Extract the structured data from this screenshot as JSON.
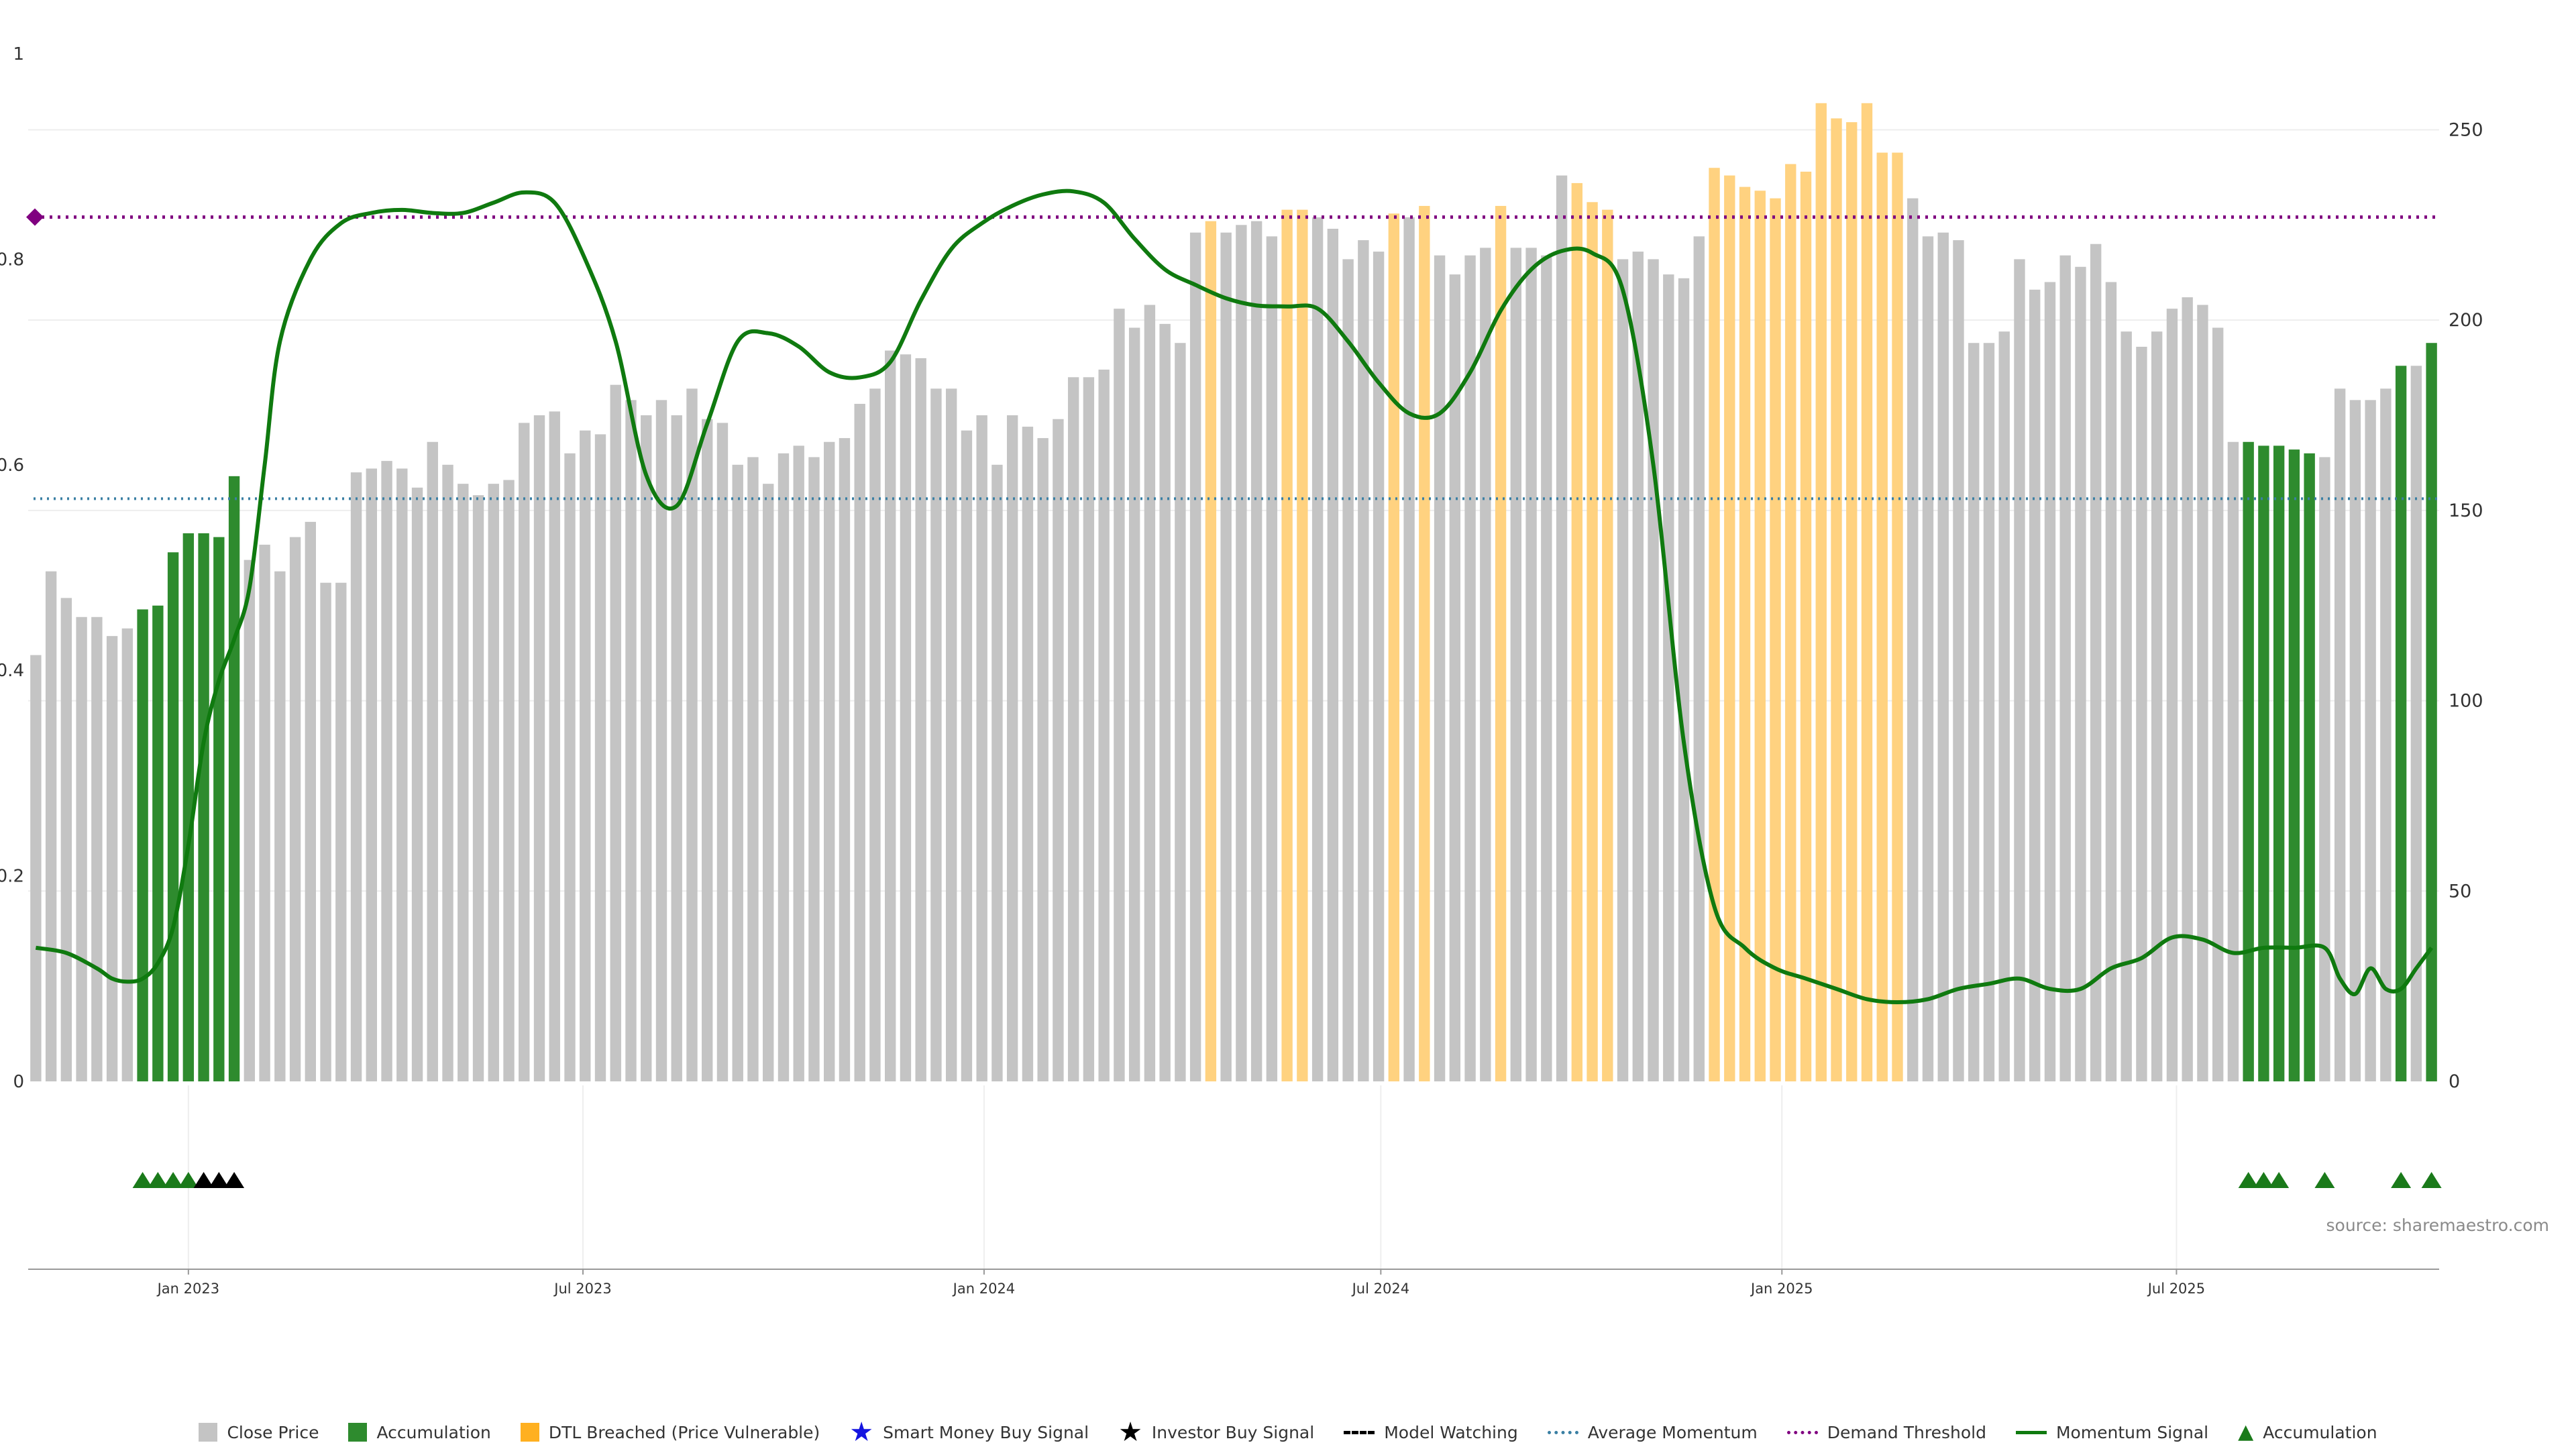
{
  "source": "source: sharemaestro.com",
  "colors": {
    "close": "#c4c4c4",
    "accumulation": "#2e8b2e",
    "dtl": "#ffd280",
    "momentum": "#0f7a0f",
    "demand": "#800080",
    "average": "#3a7fa3",
    "grid": "#eeeeee",
    "axis": "#999999"
  },
  "legend": [
    {
      "label": "Close Price",
      "kind": "box",
      "color": "#c4c4c4"
    },
    {
      "label": "Accumulation",
      "kind": "box",
      "color": "#2e8b2e"
    },
    {
      "label": "DTL Breached (Price Vulnerable)",
      "kind": "box",
      "color": "#ffb020"
    },
    {
      "label": "Smart Money Buy Signal",
      "kind": "star",
      "color": "#1515e0"
    },
    {
      "label": "Investor Buy Signal",
      "kind": "star",
      "color": "#000000"
    },
    {
      "label": "Model Watching",
      "kind": "dash",
      "color": "#000000"
    },
    {
      "label": "Average Momentum",
      "kind": "dot",
      "color": "#3a7fa3"
    },
    {
      "label": "Demand Threshold",
      "kind": "dot",
      "color": "#800080"
    },
    {
      "label": "Momentum Signal",
      "kind": "line",
      "color": "#0f7a0f"
    },
    {
      "label": "Accumulation",
      "kind": "triangle",
      "color": "#1a7a1a"
    }
  ],
  "chart_data": {
    "type": "bar",
    "x_dates": {
      "first": "2022-10-23",
      "step_days": 7,
      "count": 158
    },
    "xticks": [
      "Jan 2023",
      "Jul 2023",
      "Jan 2024",
      "Jul 2024",
      "Jan 2025",
      "Jul 2025"
    ],
    "left_axis": {
      "ticks": [
        "0",
        "0.2",
        "0.4",
        "0.6",
        "0.8",
        "1"
      ],
      "ylim": [
        0,
        1
      ]
    },
    "right_axis": {
      "ticks": [
        "0",
        "50",
        "100",
        "150",
        "200",
        "250"
      ],
      "ylim": [
        0,
        270
      ]
    },
    "series": [
      {
        "name": "Close Price",
        "axis": "right",
        "values": [
          112,
          134,
          127,
          122,
          122,
          117,
          119,
          124,
          125,
          139,
          144,
          144,
          143,
          159,
          137,
          141,
          134,
          143,
          147,
          131,
          131,
          160,
          161,
          163,
          161,
          156,
          168,
          162,
          157,
          154,
          157,
          158,
          173,
          175,
          176,
          165,
          171,
          170,
          183,
          179,
          175,
          179,
          175,
          182,
          174,
          173,
          162,
          164,
          157,
          165,
          167,
          164,
          168,
          169,
          178,
          182,
          192,
          191,
          190,
          182,
          182,
          171,
          175,
          162,
          175,
          172,
          169,
          174,
          185,
          185,
          187,
          203,
          198,
          204,
          199,
          194,
          223,
          226,
          223,
          225,
          226,
          222,
          229,
          229,
          227,
          224,
          216,
          221,
          218,
          228,
          227,
          230,
          217,
          212,
          217,
          219,
          230,
          219,
          219,
          217,
          238,
          236,
          231,
          229,
          216,
          218,
          216,
          212,
          211,
          222,
          240,
          238,
          235,
          234,
          232,
          241,
          239,
          257,
          253,
          252,
          257,
          244,
          244,
          232,
          222,
          223,
          221,
          194,
          194,
          197,
          216,
          208,
          210,
          217,
          214,
          220,
          210,
          197,
          193,
          197,
          203,
          206,
          204,
          198,
          168,
          168,
          167,
          167,
          166,
          165,
          164,
          182,
          179,
          179,
          182,
          188,
          188,
          194
        ]
      },
      {
        "name": "Momentum Signal",
        "axis": "left",
        "values": [
          0.13,
          0.125,
          0.11,
          0.1,
          0.097,
          0.1,
          0.115,
          0.15,
          0.23,
          0.33,
          0.39,
          0.43,
          0.48,
          0.6,
          0.72,
          0.8,
          0.835,
          0.845,
          0.848,
          0.845,
          0.845,
          0.855,
          0.865,
          0.855,
          0.8,
          0.72,
          0.59,
          0.56,
          0.64,
          0.72,
          0.728,
          0.715,
          0.69,
          0.685,
          0.7,
          0.76,
          0.81,
          0.835,
          0.852,
          0.863,
          0.866,
          0.855,
          0.82,
          0.79,
          0.775,
          0.762,
          0.755,
          0.754,
          0.752,
          0.72,
          0.68,
          0.65,
          0.65,
          0.69,
          0.75,
          0.79,
          0.808,
          0.806,
          0.77,
          0.6,
          0.33,
          0.17,
          0.13,
          0.11,
          0.1,
          0.09,
          0.08,
          0.077,
          0.08,
          0.09,
          0.095,
          0.1,
          0.09,
          0.09,
          0.11,
          0.12,
          0.14,
          0.138,
          0.125,
          0.13,
          0.13,
          0.13,
          0.1,
          0.085,
          0.11,
          0.09,
          0.09,
          0.11,
          0.13
        ],
        "x_index": [
          0,
          2,
          4,
          5,
          6,
          7,
          8,
          9,
          10,
          11,
          12,
          13,
          14,
          15,
          16,
          18,
          20,
          22,
          24,
          26,
          28,
          30,
          32,
          34,
          36,
          38,
          40,
          42,
          44,
          46,
          48,
          50,
          52,
          54,
          56,
          58,
          60,
          62,
          64,
          66,
          68,
          70,
          72,
          74,
          76,
          78,
          80,
          82,
          84,
          86,
          88,
          90,
          92,
          94,
          96,
          98,
          100,
          102,
          104,
          106,
          108,
          110,
          112,
          114,
          116,
          118,
          120,
          122,
          124,
          126,
          128,
          130,
          132,
          134,
          136,
          138,
          140,
          142,
          144,
          146,
          148,
          150,
          151,
          152,
          153,
          154,
          155,
          156,
          157
        ]
      }
    ],
    "average_momentum": 0.567,
    "demand_threshold": 0.841
  }
}
